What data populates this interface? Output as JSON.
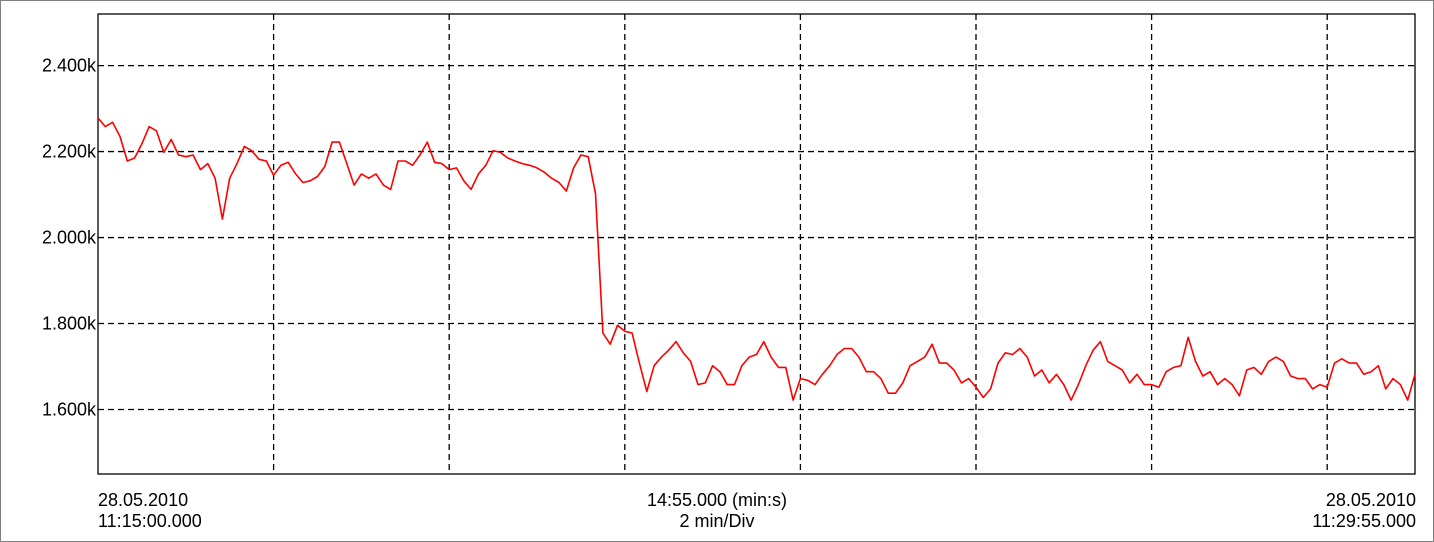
{
  "chart_data": {
    "type": "line",
    "title": "",
    "xlabel": "14:55.000 (min:s)",
    "xscale": "2 min/Div",
    "start": {
      "date": "28.05.2010",
      "time": "11:15:00.000"
    },
    "end": {
      "date": "28.05.2010",
      "time": "11:29:55.000"
    },
    "ylim": [
      1.45,
      2.52
    ],
    "y_ticks": [
      1.6,
      1.8,
      2.0,
      2.2,
      2.4
    ],
    "y_tick_labels": [
      "1.600k",
      "1.800k",
      "2.000k",
      "2.200k",
      "2.400k"
    ],
    "grid": true,
    "colors": {
      "series": "#ff0000",
      "grid": "#000000",
      "axis": "#000000"
    },
    "series": [
      {
        "name": "",
        "values": [
          2.278,
          2.258,
          2.268,
          2.235,
          2.178,
          2.185,
          2.218,
          2.258,
          2.248,
          2.198,
          2.228,
          2.192,
          2.188,
          2.192,
          2.158,
          2.172,
          2.138,
          2.043,
          2.138,
          2.172,
          2.212,
          2.202,
          2.182,
          2.178,
          2.145,
          2.168,
          2.175,
          2.148,
          2.128,
          2.132,
          2.142,
          2.165,
          2.222,
          2.222,
          2.172,
          2.122,
          2.148,
          2.138,
          2.148,
          2.122,
          2.112,
          2.178,
          2.178,
          2.168,
          2.192,
          2.222,
          2.175,
          2.172,
          2.158,
          2.162,
          2.132,
          2.112,
          2.148,
          2.168,
          2.202,
          2.198,
          2.185,
          2.178,
          2.172,
          2.168,
          2.162,
          2.152,
          2.138,
          2.128,
          2.108,
          2.162,
          2.192,
          2.188,
          2.102,
          1.778,
          1.752,
          1.796,
          1.782,
          1.778,
          1.708,
          1.642,
          1.702,
          1.722,
          1.738,
          1.758,
          1.732,
          1.712,
          1.658,
          1.662,
          1.702,
          1.688,
          1.658,
          1.658,
          1.702,
          1.722,
          1.728,
          1.758,
          1.722,
          1.698,
          1.698,
          1.622,
          1.672,
          1.668,
          1.658,
          1.682,
          1.702,
          1.728,
          1.742,
          1.742,
          1.722,
          1.688,
          1.688,
          1.672,
          1.638,
          1.638,
          1.662,
          1.702,
          1.712,
          1.722,
          1.752,
          1.708,
          1.708,
          1.692,
          1.662,
          1.672,
          1.652,
          1.628,
          1.648,
          1.708,
          1.732,
          1.728,
          1.742,
          1.722,
          1.678,
          1.692,
          1.662,
          1.682,
          1.658,
          1.622,
          1.658,
          1.702,
          1.738,
          1.758,
          1.712,
          1.702,
          1.692,
          1.662,
          1.682,
          1.658,
          1.658,
          1.652,
          1.688,
          1.698,
          1.702,
          1.768,
          1.712,
          1.678,
          1.688,
          1.658,
          1.672,
          1.658,
          1.632,
          1.692,
          1.698,
          1.682,
          1.712,
          1.722,
          1.712,
          1.678,
          1.672,
          1.672,
          1.648,
          1.658,
          1.652,
          1.708,
          1.718,
          1.708,
          1.708,
          1.682,
          1.688,
          1.702,
          1.648,
          1.672,
          1.658,
          1.622,
          1.682
        ]
      }
    ]
  }
}
